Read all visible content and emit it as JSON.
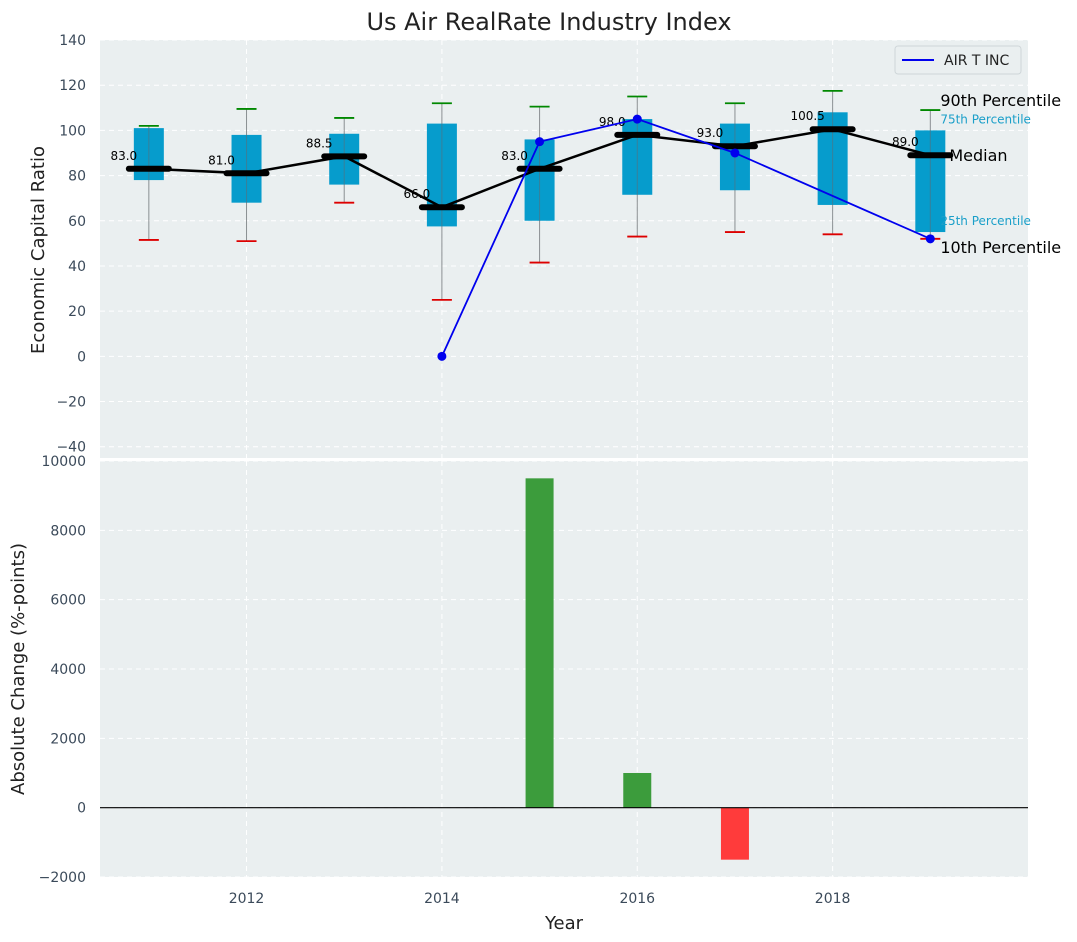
{
  "chart_data": [
    {
      "type": "box",
      "title": "Us Air RealRate Industry Index",
      "ylabel": "Economic Capital Ratio",
      "xlabel": "",
      "ylim": [
        -45,
        140
      ],
      "xlim": [
        2010.5,
        2020.0
      ],
      "yticks": [
        -40,
        -20,
        0,
        20,
        40,
        60,
        80,
        100,
        120,
        140
      ],
      "ytick_labels": [
        "−40",
        "−20",
        "0",
        "20",
        "40",
        "60",
        "80",
        "100",
        "120",
        "140"
      ],
      "grid": true,
      "years": [
        2011,
        2012,
        2013,
        2014,
        2015,
        2016,
        2017,
        2018,
        2019
      ],
      "p10": [
        51.5,
        51,
        68,
        25,
        41.5,
        53,
        55,
        54,
        52
      ],
      "q1": [
        78,
        68,
        76,
        57.5,
        60,
        71.5,
        73.5,
        67,
        55
      ],
      "median": [
        83,
        81,
        88.5,
        66,
        83,
        98,
        93,
        100.5,
        89
      ],
      "q3": [
        101,
        98,
        98.5,
        103,
        96,
        105,
        103,
        108,
        100
      ],
      "p90": [
        102,
        109.5,
        105.5,
        112,
        110.5,
        115,
        112,
        117.5,
        109
      ],
      "median_labels": [
        "83.0",
        "81.0",
        "88.5",
        "66.0",
        "83.0",
        "98.0",
        "93.0",
        "100.5",
        "89.0"
      ],
      "series": [
        {
          "name": "AIR T INC",
          "x": [
            2014,
            2015,
            2016,
            2017,
            2019
          ],
          "values": [
            0,
            95,
            105,
            90,
            52
          ],
          "color": "#0000ee"
        }
      ],
      "annotations": {
        "p90": "90th Percentile",
        "q3": "75th Percentile",
        "median": "Median",
        "q1": "25th Percentile",
        "p10": "10th Percentile"
      },
      "legend_position": "upper-right",
      "colors": {
        "box": "#069ccc",
        "median": "#000000",
        "p90_cap": "#008800",
        "p10_cap": "#dd0000",
        "background": "#eaeff0"
      }
    },
    {
      "type": "bar",
      "title": "",
      "ylabel": "Absolute Change (%-points)",
      "xlabel": "Year",
      "ylim": [
        -2000,
        10000
      ],
      "yticks": [
        -2000,
        0,
        2000,
        4000,
        6000,
        8000,
        10000
      ],
      "ytick_labels": [
        "−2000",
        "0",
        "2000",
        "4000",
        "6000",
        "8000",
        "10000"
      ],
      "xticks": [
        2012,
        2014,
        2016,
        2018
      ],
      "xtick_labels": [
        "2012",
        "2014",
        "2016",
        "2018"
      ],
      "grid": true,
      "x": [
        2015,
        2016,
        2017
      ],
      "values": [
        9500,
        1000,
        -1500
      ],
      "colors": {
        "positive": "#3c9c3c",
        "negative": "#ff3b3b"
      }
    }
  ]
}
